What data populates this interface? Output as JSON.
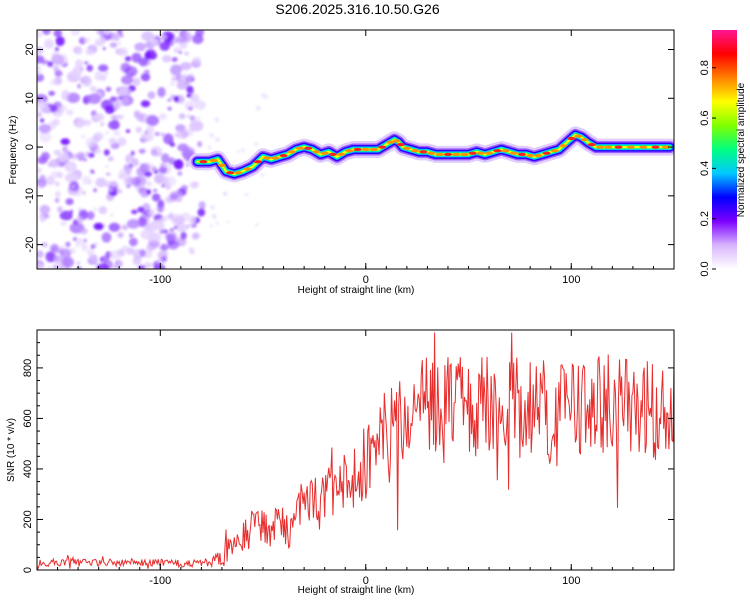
{
  "title": "S206.2025.316.10.50.G26",
  "chart_data": [
    {
      "type": "heatmap",
      "title": "S206.2025.316.10.50.G26",
      "xlabel": "Height of straight line (km)",
      "ylabel": "Frequency (Hz)",
      "xlim": [
        -160,
        150
      ],
      "ylim": [
        -25,
        24
      ],
      "x_ticks": [
        -100,
        0,
        100
      ],
      "y_ticks": [
        -20,
        -10,
        0,
        10,
        20
      ],
      "noise_region_x": [
        -160,
        -78
      ],
      "ridge": {
        "x": [
          -82,
          -76,
          -72,
          -68,
          -64,
          -60,
          -55,
          -50,
          -46,
          -42,
          -38,
          -34,
          -30,
          -26,
          -22,
          -18,
          -14,
          -10,
          -6,
          -2,
          2,
          6,
          10,
          14,
          16,
          18,
          22,
          26,
          30,
          34,
          38,
          42,
          46,
          50,
          54,
          58,
          62,
          66,
          70,
          74,
          78,
          82,
          86,
          90,
          94,
          98,
          102,
          105,
          108,
          112,
          116,
          120,
          126,
          132,
          138,
          144,
          148
        ],
        "y": [
          -3,
          -3,
          -2.5,
          -5,
          -5.5,
          -5,
          -4,
          -2,
          -2.5,
          -2,
          -1.5,
          -0.5,
          0,
          -0.5,
          -1.5,
          -1,
          -2,
          -1,
          -0.5,
          -0.5,
          -0.5,
          -0.5,
          0.5,
          1.5,
          1,
          0,
          -0.5,
          -1,
          -1,
          -1.5,
          -1.5,
          -1.5,
          -1.5,
          -1.5,
          -1,
          -1.5,
          -1,
          -0.5,
          -1,
          -1.5,
          -1.5,
          -2,
          -1.5,
          -1,
          -0.5,
          1,
          2.5,
          2,
          1,
          0,
          0,
          0,
          0,
          0,
          0,
          0,
          0
        ]
      },
      "colorbar": {
        "label": "Normalized spectral amplitude",
        "ticks": [
          0.0,
          0.2,
          0.4,
          0.6,
          0.8
        ],
        "range": [
          0,
          0.95
        ],
        "colors": [
          "#ffffff",
          "#d8b4fe",
          "#7b00ff",
          "#0000ff",
          "#00c8ff",
          "#00ff80",
          "#80ff00",
          "#ffff00",
          "#ff8000",
          "#ff0000",
          "#ff1493"
        ]
      }
    },
    {
      "type": "line",
      "title": "",
      "xlabel": "Height of straight line (km)",
      "ylabel": "SNR (10 * v/v)",
      "xlim": [
        -160,
        150
      ],
      "ylim": [
        0,
        950
      ],
      "x_ticks": [
        -100,
        0,
        100
      ],
      "y_ticks": [
        0,
        200,
        400,
        600,
        800
      ],
      "series": [
        {
          "name": "SNR",
          "color": "#e82d2d",
          "x": [
            -160,
            -150,
            -140,
            -130,
            -120,
            -110,
            -100,
            -90,
            -80,
            -75,
            -70,
            -65,
            -60,
            -55,
            -50,
            -45,
            -40,
            -36,
            -34,
            -30,
            -25,
            -20,
            -15,
            -10,
            -5,
            0,
            5,
            10,
            15,
            20,
            25,
            30,
            35,
            40,
            45,
            50,
            55,
            60,
            65,
            70,
            75,
            80,
            85,
            90,
            95,
            100,
            105,
            110,
            115,
            120,
            125,
            130,
            135,
            140,
            145,
            150
          ],
          "y": [
            25,
            30,
            30,
            28,
            30,
            30,
            28,
            25,
            25,
            28,
            50,
            90,
            130,
            160,
            170,
            180,
            190,
            200,
            300,
            250,
            280,
            300,
            330,
            350,
            400,
            430,
            480,
            560,
            600,
            620,
            640,
            650,
            650,
            660,
            660,
            640,
            650,
            650,
            660,
            660,
            640,
            660,
            640,
            560,
            620,
            640,
            660,
            670,
            660,
            650,
            640,
            650,
            640,
            620,
            640,
            660
          ],
          "jitter": [
            15,
            15,
            15,
            15,
            15,
            15,
            15,
            15,
            15,
            20,
            40,
            60,
            70,
            80,
            80,
            90,
            90,
            120,
            120,
            100,
            100,
            110,
            120,
            120,
            150,
            150,
            150,
            160,
            180,
            200,
            200,
            200,
            200,
            200,
            200,
            200,
            200,
            200,
            200,
            200,
            200,
            200,
            200,
            250,
            200,
            200,
            200,
            200,
            200,
            200,
            200,
            200,
            200,
            200,
            200,
            200
          ]
        }
      ]
    }
  ]
}
